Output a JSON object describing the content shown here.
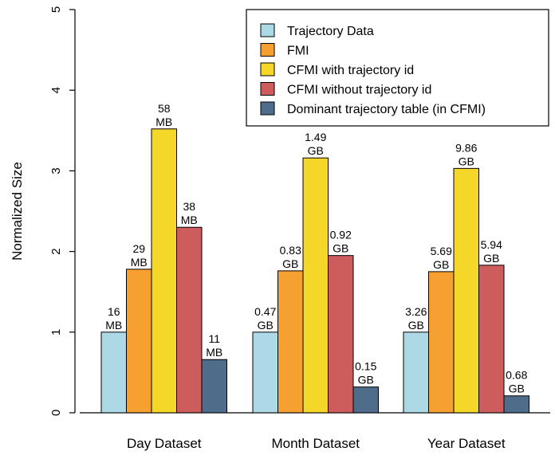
{
  "chart_data": {
    "type": "bar",
    "ylabel": "Normalized Size",
    "ylim": [
      0,
      5
    ],
    "yticks": [
      "0",
      "1",
      "2",
      "3",
      "4",
      "5"
    ],
    "grid": false,
    "legend_position": "top-right",
    "categories": [
      "Day Dataset",
      "Month Dataset",
      "Year Dataset"
    ],
    "series": [
      {
        "name": "Trajectory Data",
        "color": "#add8e6",
        "values": [
          1.0,
          1.0,
          1.0
        ],
        "labels": [
          [
            "16",
            "MB"
          ],
          [
            "0.47",
            "GB"
          ],
          [
            "3.26",
            "GB"
          ]
        ]
      },
      {
        "name": "FMI",
        "color": "#f5a030",
        "values": [
          1.78,
          1.76,
          1.75
        ],
        "labels": [
          [
            "29",
            "MB"
          ],
          [
            "0.83",
            "GB"
          ],
          [
            "5.69",
            "GB"
          ]
        ]
      },
      {
        "name": "CFMI with trajectory id",
        "color": "#f5d72a",
        "values": [
          3.52,
          3.16,
          3.03
        ],
        "labels": [
          [
            "58",
            "MB"
          ],
          [
            "1.49",
            "GB"
          ],
          [
            "9.86",
            "GB"
          ]
        ]
      },
      {
        "name": "CFMI without trajectory id",
        "color": "#cd5c5c",
        "values": [
          2.3,
          1.95,
          1.83
        ],
        "labels": [
          [
            "38",
            "MB"
          ],
          [
            "0.92",
            "GB"
          ],
          [
            "5.94",
            "GB"
          ]
        ]
      },
      {
        "name": "Dominant trajectory table (in CFMI)",
        "color": "#4f6d8a",
        "values": [
          0.66,
          0.32,
          0.21
        ],
        "labels": [
          [
            "11",
            "MB"
          ],
          [
            "0.15",
            "GB"
          ],
          [
            "0.68",
            "GB"
          ]
        ]
      }
    ]
  }
}
